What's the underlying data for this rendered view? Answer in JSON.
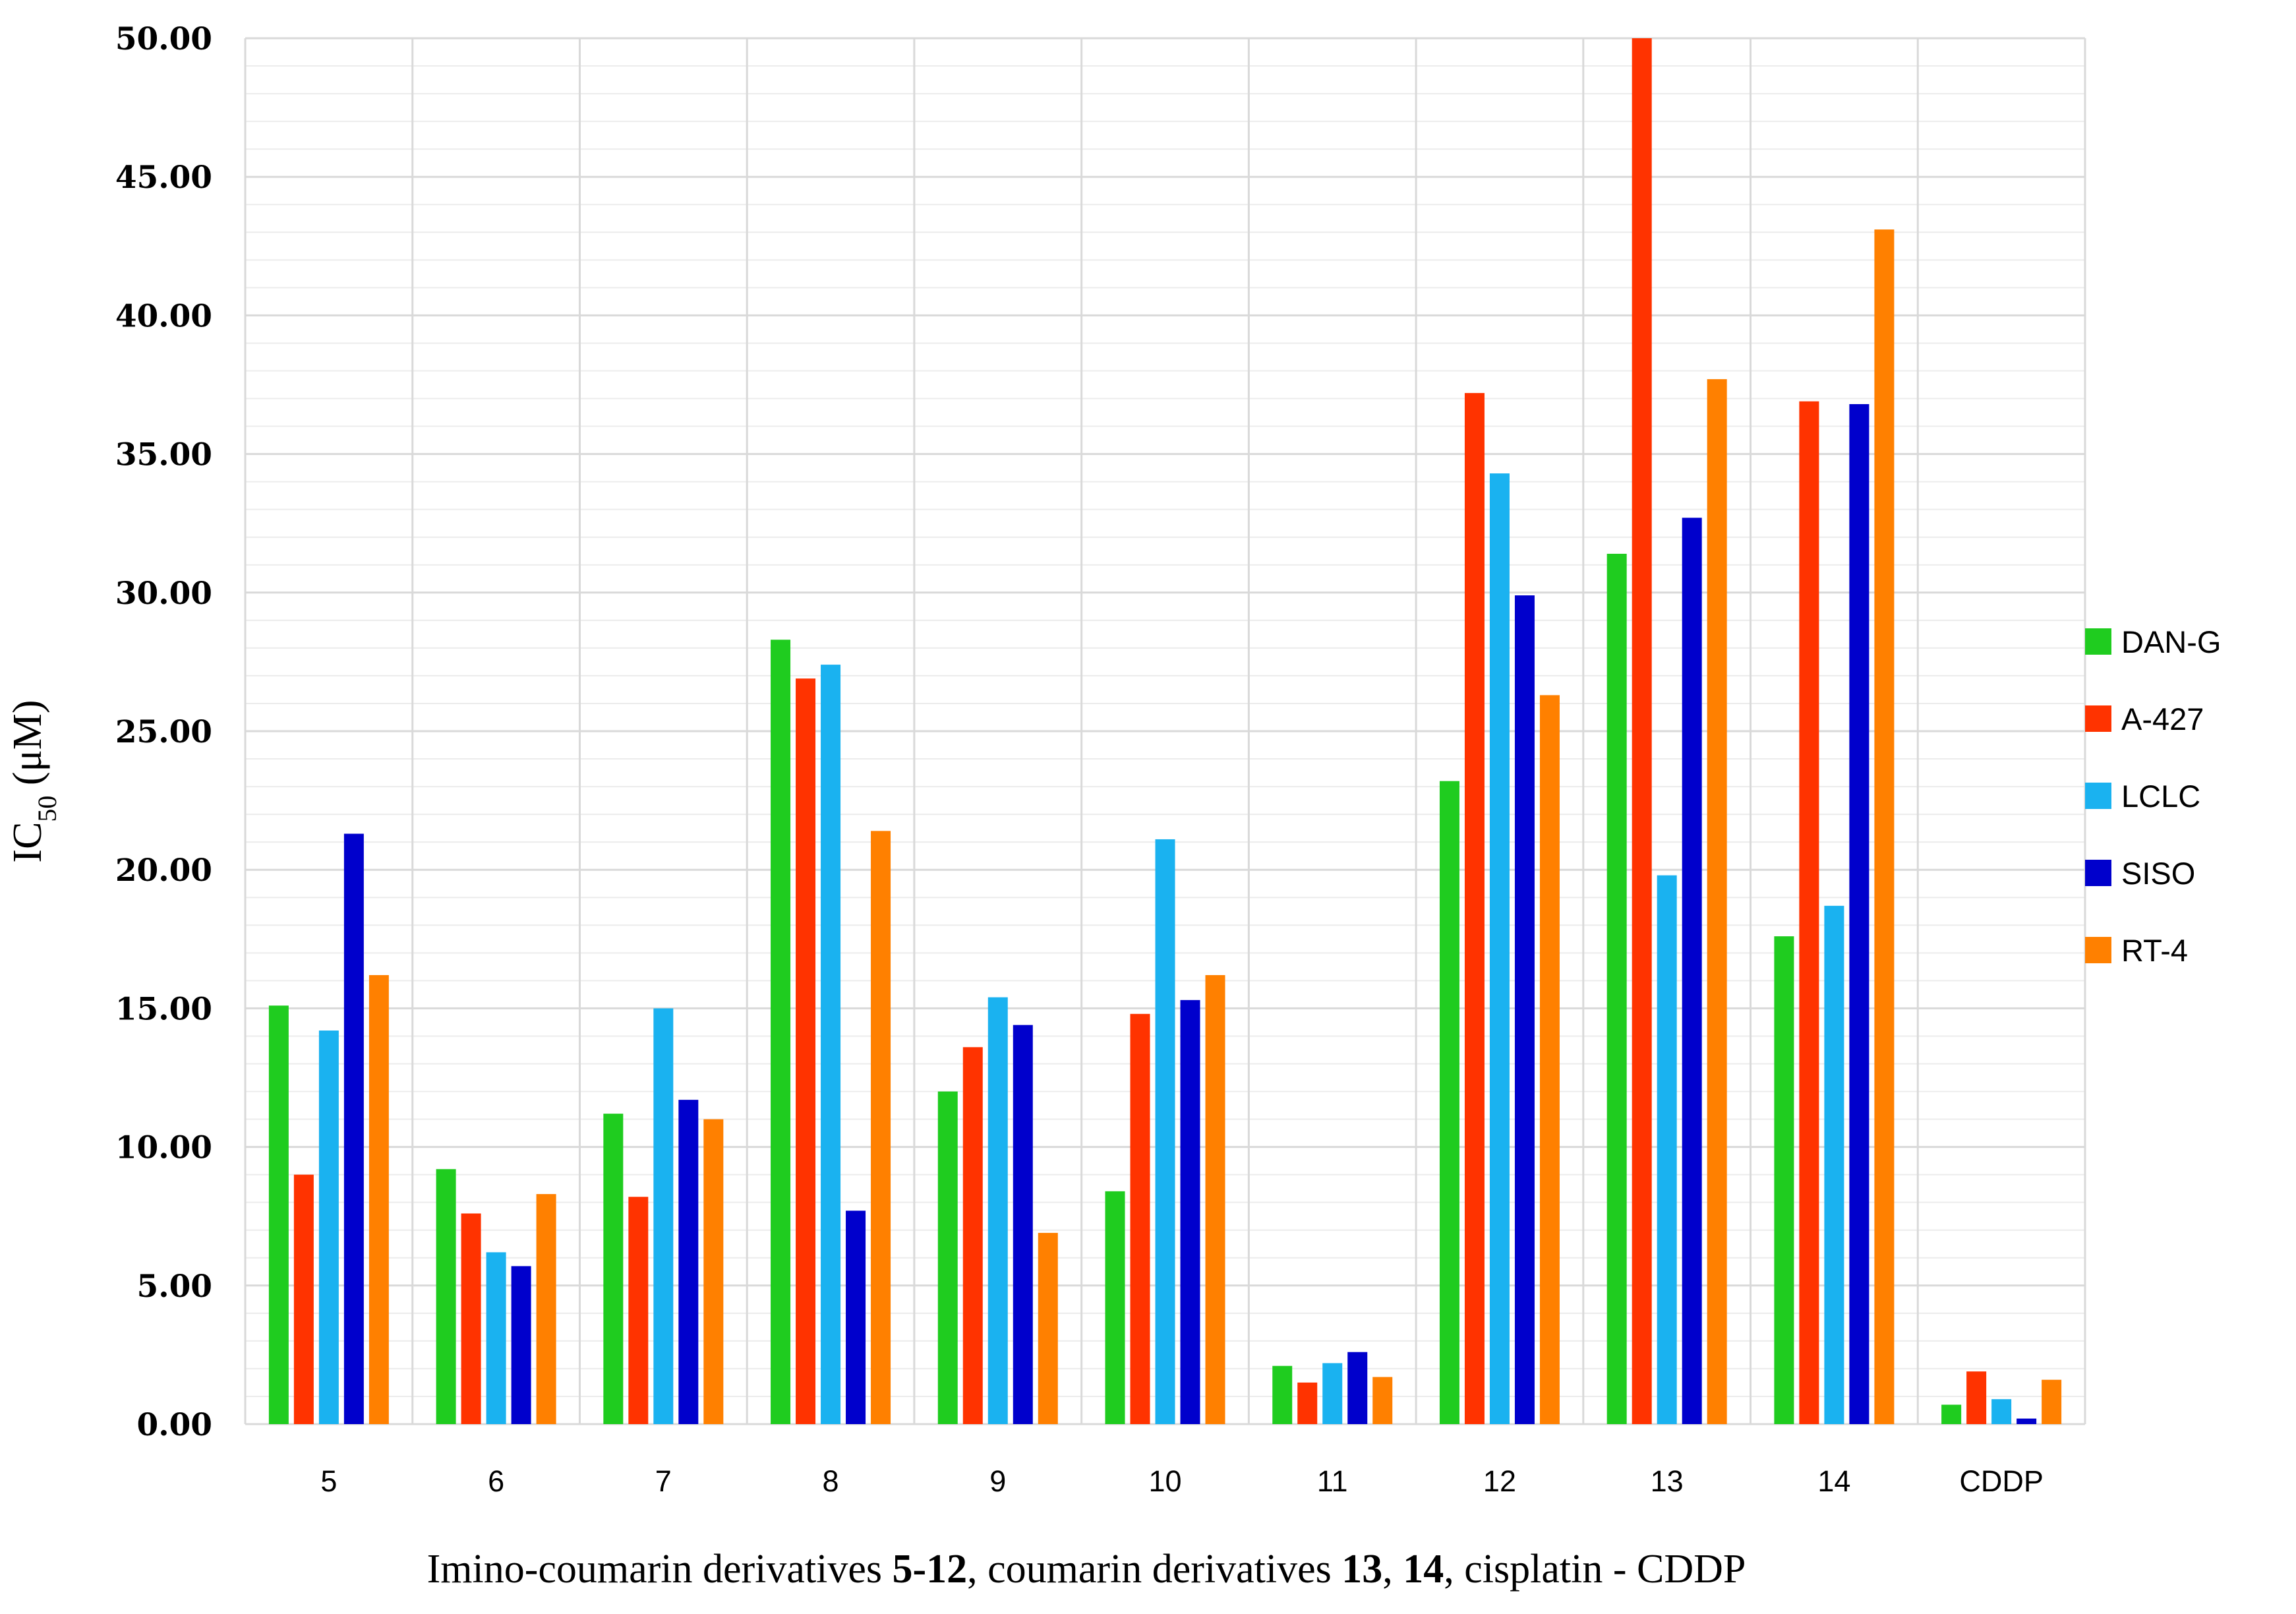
{
  "chart_data": {
    "type": "bar",
    "categories": [
      "5",
      "6",
      "7",
      "8",
      "9",
      "10",
      "11",
      "12",
      "13",
      "14",
      "CDDP"
    ],
    "series": [
      {
        "name": "DAN-G",
        "color": "#1fcc1f",
        "values": [
          15.1,
          9.2,
          11.2,
          28.3,
          12.0,
          8.4,
          2.1,
          23.2,
          31.4,
          17.6,
          0.7
        ]
      },
      {
        "name": "A-427",
        "color": "#ff3300",
        "values": [
          9.0,
          7.6,
          8.2,
          26.9,
          13.6,
          14.8,
          1.5,
          37.2,
          50.0,
          36.9,
          1.9
        ]
      },
      {
        "name": "LCLC",
        "color": "#1ab2f0",
        "values": [
          14.2,
          6.2,
          15.0,
          27.4,
          15.4,
          21.1,
          2.2,
          34.3,
          19.8,
          18.7,
          0.9
        ]
      },
      {
        "name": "SISO",
        "color": "#0000cc",
        "values": [
          21.3,
          5.7,
          11.7,
          7.7,
          14.4,
          15.3,
          2.6,
          29.9,
          32.7,
          36.8,
          0.2
        ]
      },
      {
        "name": "RT-4",
        "color": "#ff8000",
        "values": [
          16.2,
          8.3,
          11.0,
          21.4,
          6.9,
          16.2,
          1.7,
          26.3,
          37.7,
          43.1,
          1.6
        ]
      }
    ],
    "ylim": [
      0,
      50
    ],
    "yticks": [
      "0.00",
      "5.00",
      "10.00",
      "15.00",
      "20.00",
      "25.00",
      "30.00",
      "35.00",
      "40.00",
      "45.00",
      "50.00"
    ],
    "ylabel_main": "IC",
    "ylabel_sub": "50",
    "ylabel_unit": " (μM)",
    "xlabel_parts": [
      {
        "text": "Imino-coumarin derivatives ",
        "bold": false
      },
      {
        "text": "5-12",
        "bold": true
      },
      {
        "text": ", coumarin derivatives ",
        "bold": false
      },
      {
        "text": "13",
        "bold": true
      },
      {
        "text": ", ",
        "bold": false
      },
      {
        "text": "14",
        "bold": true
      },
      {
        "text": ", cisplatin - CDDP",
        "bold": false
      }
    ],
    "grid": "major and minor horizontal, vertical category separators",
    "legend_position": "right"
  }
}
